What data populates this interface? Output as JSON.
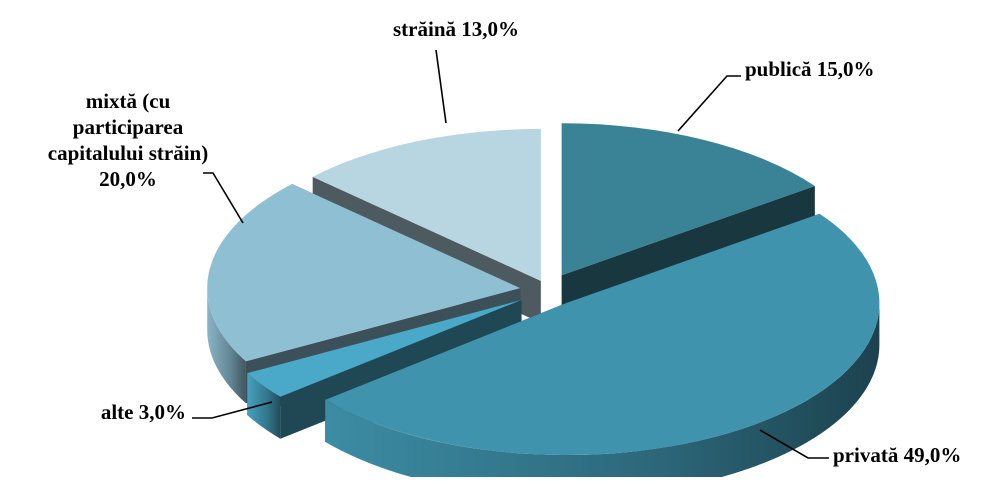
{
  "chart_data": {
    "type": "pie",
    "three_d": true,
    "exploded": true,
    "title": "",
    "slices": [
      {
        "key": "publica",
        "name": "publică",
        "label": "publică 15,0%",
        "value": 15.0,
        "color": "#3a8295"
      },
      {
        "key": "privata",
        "name": "privată",
        "label": "privată 49,0%",
        "value": 49.0,
        "color": "#3f93ad"
      },
      {
        "key": "alte",
        "name": "alte",
        "label": "alte 3,0%",
        "value": 3.0,
        "color": "#4aa9c8"
      },
      {
        "key": "mixta",
        "name": "mixtă (cu participarea capitalului străin)",
        "label": "mixtă (cu participarea capitalului străin) 20,0%",
        "label_lines": [
          "mixtă (cu",
          "participarea",
          "capitalului străin)",
          "20,0%"
        ],
        "value": 20.0,
        "color": "#8fbfd3"
      },
      {
        "key": "straina",
        "name": "străină",
        "label": "străină 13,0%",
        "value": 13.0,
        "color": "#b7d6e1"
      }
    ],
    "legend": "none",
    "data_labels": "outside-with-leader-lines"
  }
}
